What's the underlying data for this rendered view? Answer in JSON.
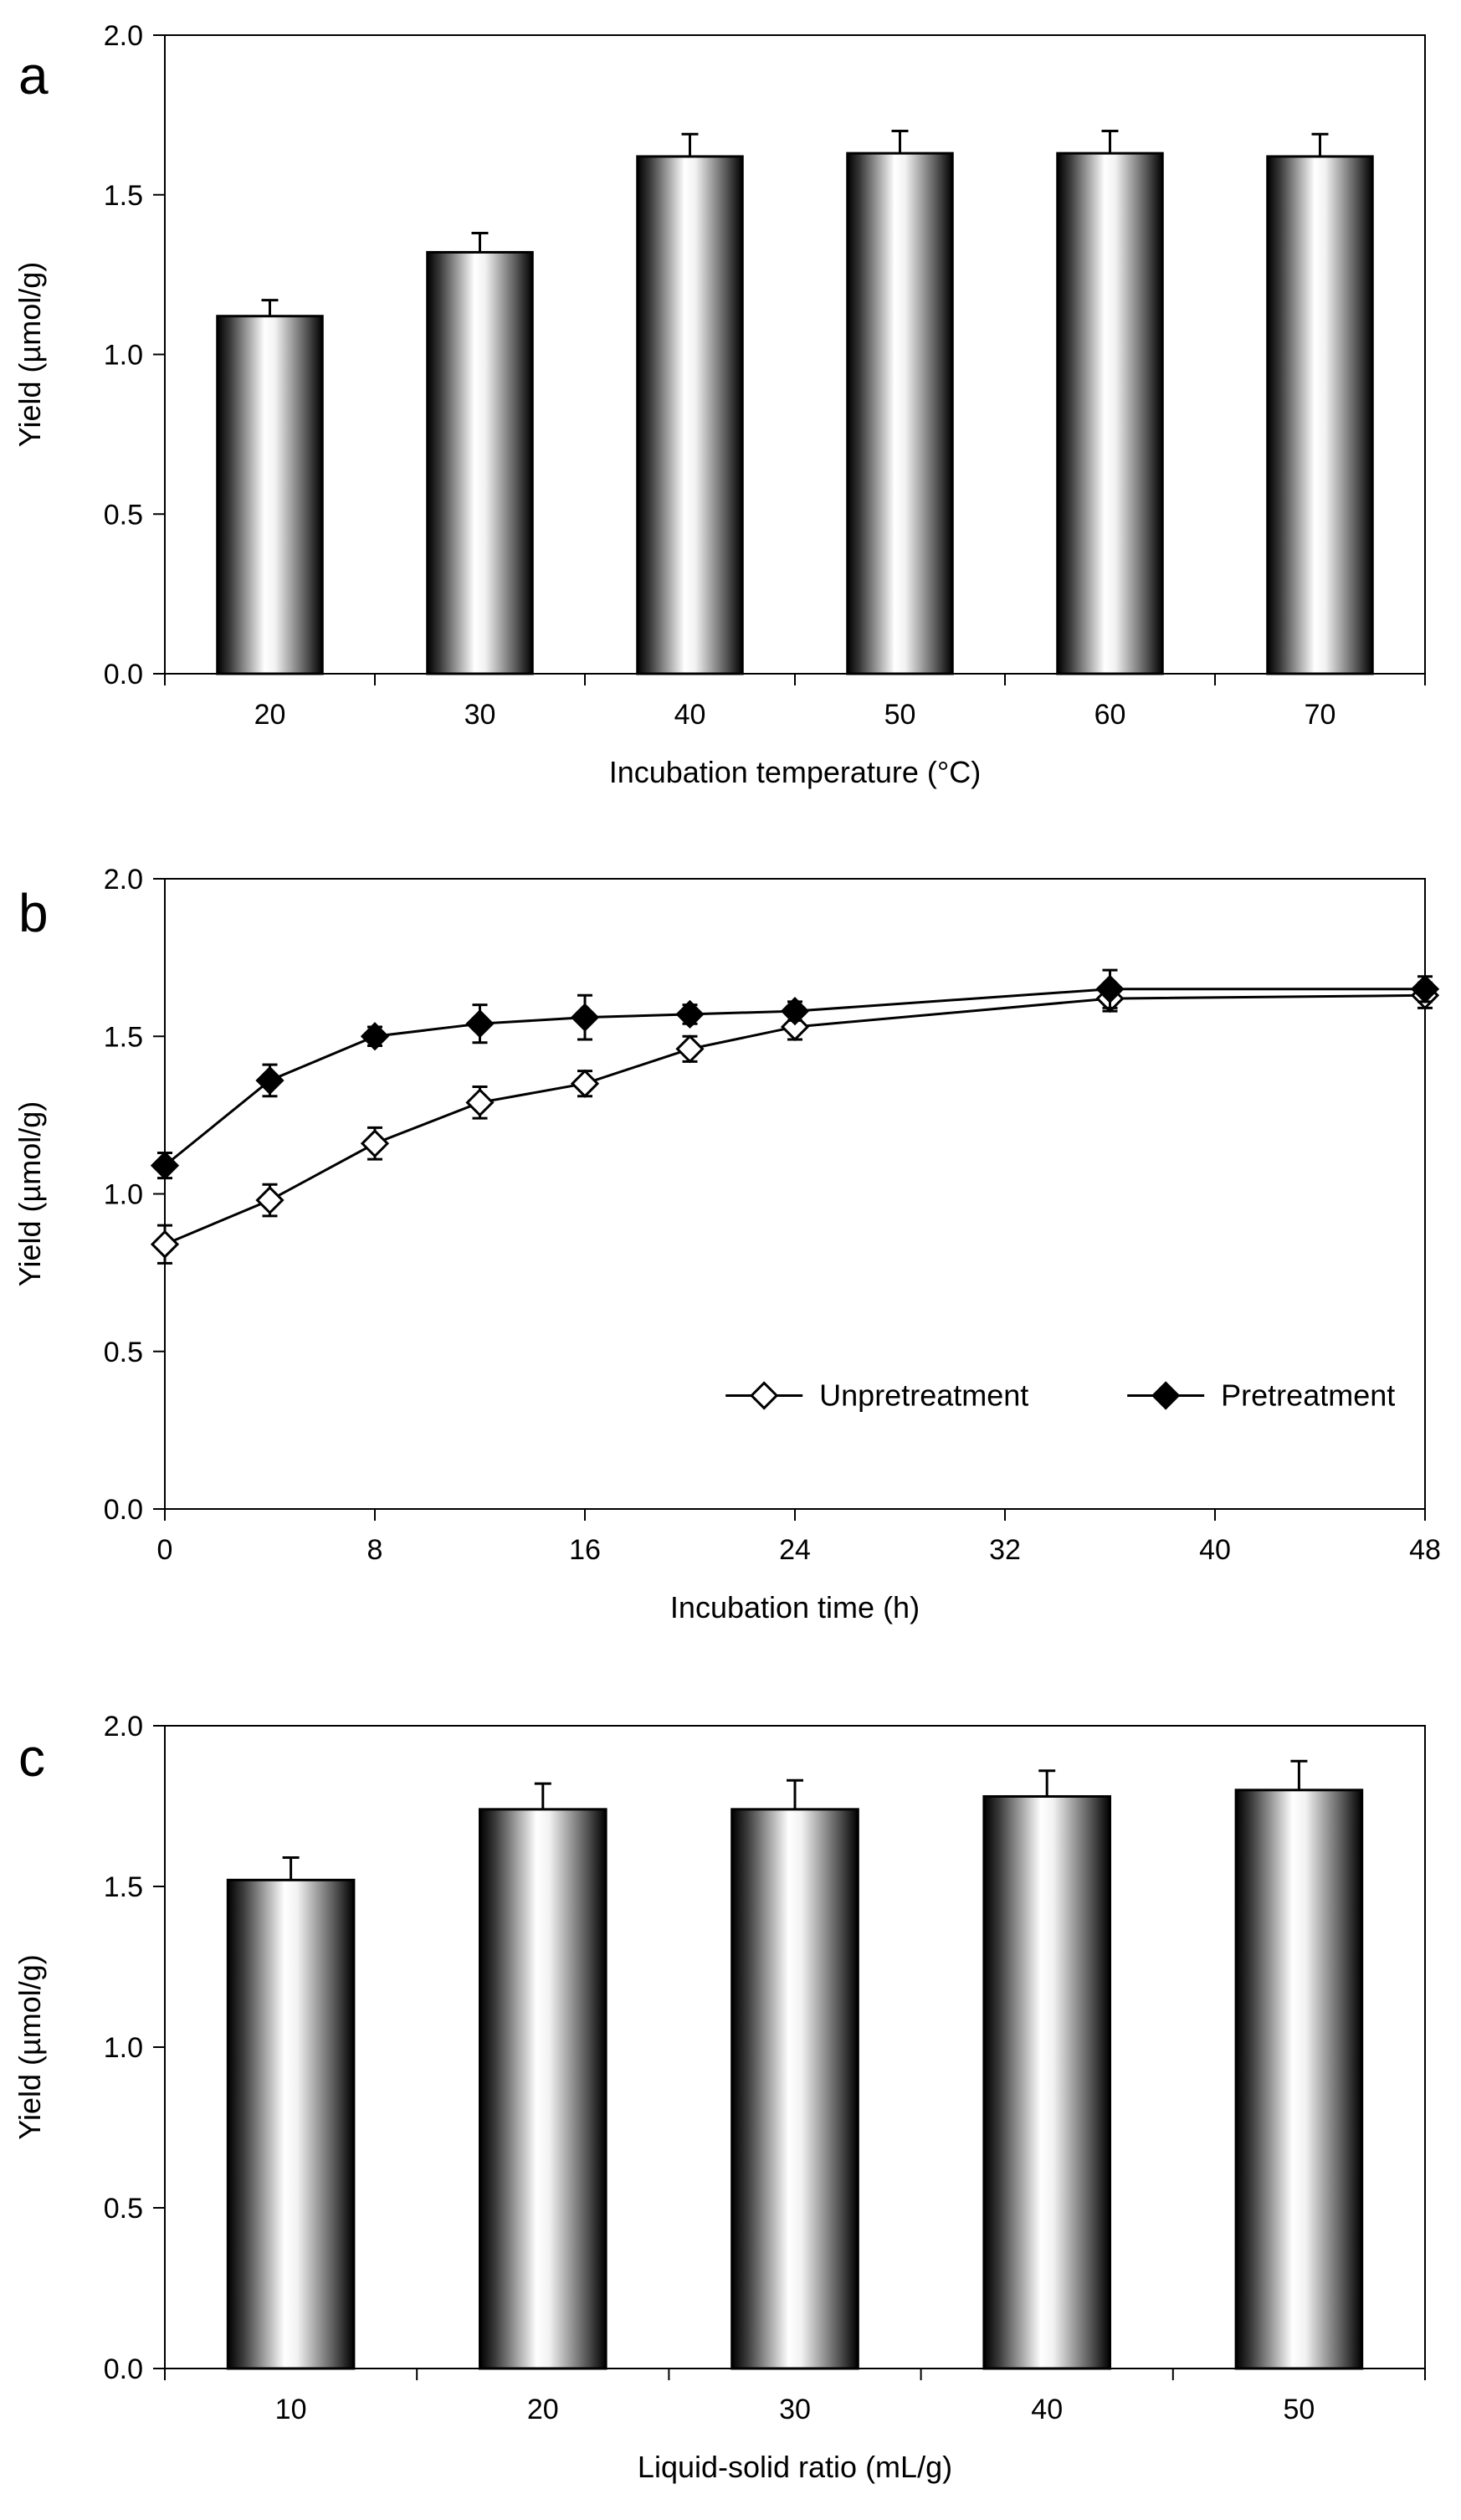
{
  "chart_data": [
    {
      "panel": "a",
      "type": "bar",
      "title": "",
      "xlabel": "Incubation temperature (°C)",
      "ylabel": "Yield (µmol/g)",
      "categories": [
        "20",
        "30",
        "40",
        "50",
        "60",
        "70"
      ],
      "values": [
        1.12,
        1.32,
        1.62,
        1.63,
        1.63,
        1.62
      ],
      "errors": [
        0.05,
        0.06,
        0.07,
        0.07,
        0.07,
        0.07
      ],
      "ylim": [
        0,
        2.0
      ],
      "yticks": [
        "0.0",
        "0.5",
        "1.0",
        "1.5",
        "2.0"
      ],
      "grid": false
    },
    {
      "panel": "b",
      "type": "line",
      "title": "",
      "xlabel": "Incubation time (h)",
      "ylabel": "Yield (µmol/g)",
      "xlim": [
        0,
        48
      ],
      "ylim": [
        0,
        2.0
      ],
      "xticks": [
        "0",
        "8",
        "16",
        "24",
        "32",
        "40",
        "48"
      ],
      "yticks": [
        "0.0",
        "0.5",
        "1.0",
        "1.5",
        "2.0"
      ],
      "legend_position": "bottom-right",
      "grid": false,
      "series": [
        {
          "name": "Unpretreatment",
          "marker": "open-diamond",
          "x": [
            0,
            4,
            8,
            12,
            16,
            20,
            24,
            36,
            48
          ],
          "values": [
            0.84,
            0.98,
            1.16,
            1.29,
            1.35,
            1.46,
            1.53,
            1.62,
            1.63
          ],
          "errors": [
            0.06,
            0.05,
            0.05,
            0.05,
            0.04,
            0.04,
            0.04,
            0.04,
            0.04
          ]
        },
        {
          "name": "Pretreatment",
          "marker": "filled-diamond",
          "x": [
            0,
            4,
            8,
            12,
            16,
            20,
            24,
            36,
            48
          ],
          "values": [
            1.09,
            1.36,
            1.5,
            1.54,
            1.56,
            1.57,
            1.58,
            1.65,
            1.65
          ],
          "errors": [
            0.04,
            0.05,
            0.03,
            0.06,
            0.07,
            0.03,
            0.03,
            0.06,
            0.04
          ]
        }
      ]
    },
    {
      "panel": "c",
      "type": "bar",
      "title": "",
      "xlabel": "Liquid-solid ratio (mL/g)",
      "ylabel": "Yield (µmol/g)",
      "categories": [
        "10",
        "20",
        "30",
        "40",
        "50"
      ],
      "values": [
        1.52,
        1.74,
        1.74,
        1.78,
        1.8
      ],
      "errors": [
        0.07,
        0.08,
        0.09,
        0.08,
        0.09
      ],
      "ylim": [
        0,
        2.0
      ],
      "yticks": [
        "0.0",
        "0.5",
        "1.0",
        "1.5",
        "2.0"
      ],
      "grid": false
    }
  ]
}
